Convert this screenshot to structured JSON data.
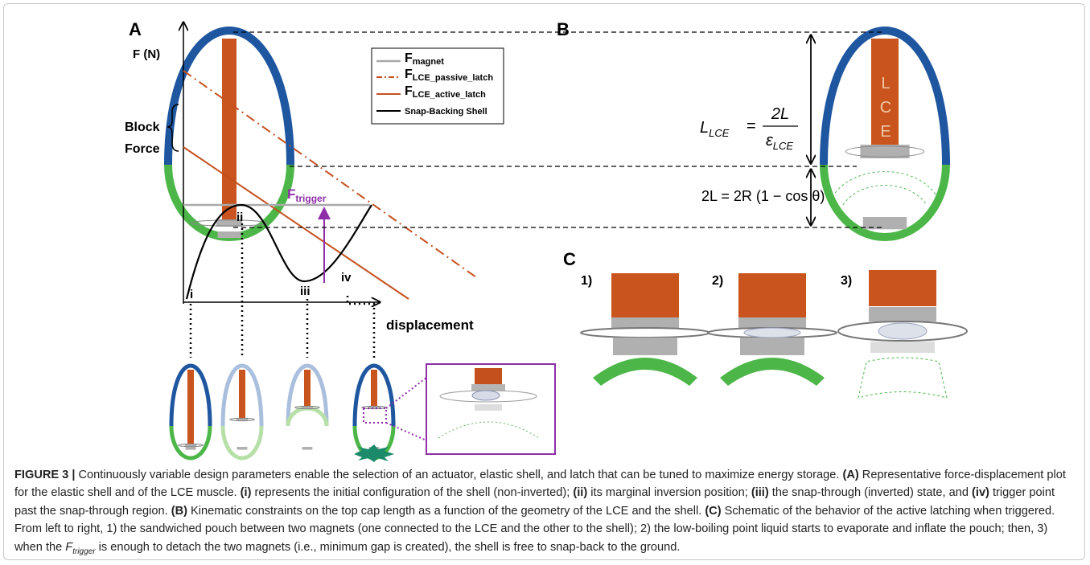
{
  "panels": {
    "a": {
      "label": "A",
      "y_axis_label": "F (N)",
      "x_axis_label": "displacement",
      "block_force": [
        "Block",
        "Force"
      ],
      "f_trigger": {
        "base": "F",
        "sub": "trigger"
      },
      "points": [
        "i",
        "ii",
        "iii",
        "iv"
      ],
      "legend": [
        {
          "base": "F",
          "sub": "magnet"
        },
        {
          "base": "F",
          "sub": "LCE_passive_latch"
        },
        {
          "base": "F",
          "sub": "LCE_active_latch"
        },
        {
          "base": "Snap-Backing Shell"
        }
      ]
    },
    "b": {
      "label": "B",
      "lce_letters": [
        "L",
        "C",
        "E"
      ],
      "length_equation": {
        "lhs": {
          "base": "L",
          "sub": "LCE"
        },
        "equals": "=",
        "numerator": "2L",
        "denominator": {
          "base": "ε",
          "sub": "LCE"
        }
      },
      "cap_equation": "2L = 2R (1 − cos θ)"
    },
    "c": {
      "label": "C",
      "steps": [
        "1)",
        "2)",
        "3)"
      ]
    }
  },
  "caption": [
    {
      "text": "FIGURE 3 | ",
      "style": "bold"
    },
    {
      "text": "Continuously variable design parameters enable the selection of an actuator, elastic shell, and latch that can be tuned to maximize energy storage. ",
      "style": "plain"
    },
    {
      "text": "(A)",
      "style": "bold"
    },
    {
      "text": " Representative force-displacement plot for the elastic shell and of the LCE muscle. ",
      "style": "plain"
    },
    {
      "text": "(i)",
      "style": "bold"
    },
    {
      "text": " represents the initial configuration of the shell (non-inverted); ",
      "style": "plain"
    },
    {
      "text": "(ii)",
      "style": "bold"
    },
    {
      "text": " its marginal inversion position; ",
      "style": "plain"
    },
    {
      "text": "(iii)",
      "style": "bold"
    },
    {
      "text": " the snap-through (inverted) state, and ",
      "style": "plain"
    },
    {
      "text": "(iv)",
      "style": "bold"
    },
    {
      "text": " trigger point past the snap-through region. ",
      "style": "plain"
    },
    {
      "text": "(B)",
      "style": "bold"
    },
    {
      "text": " Kinematic constraints on the top cap length as a function of the geometry of the LCE and the shell. ",
      "style": "plain"
    },
    {
      "text": "(C)",
      "style": "bold"
    },
    {
      "text": " Schematic of the behavior of the active latching when triggered. From left to right, 1) the sandwiched pouch between two magnets (one connected to the LCE and the other to the shell); 2) the low-boiling point liquid starts to evaporate and inflate the pouch; then, 3) when the ",
      "style": "plain"
    },
    {
      "text": "F",
      "style": "italic"
    },
    {
      "text": "trigger",
      "style": "italic-sub"
    },
    {
      "text": " is enough to detach the two magnets (i.e., minimum gap is created), the shell is free to snap-back to the ground.",
      "style": "plain"
    }
  ]
}
